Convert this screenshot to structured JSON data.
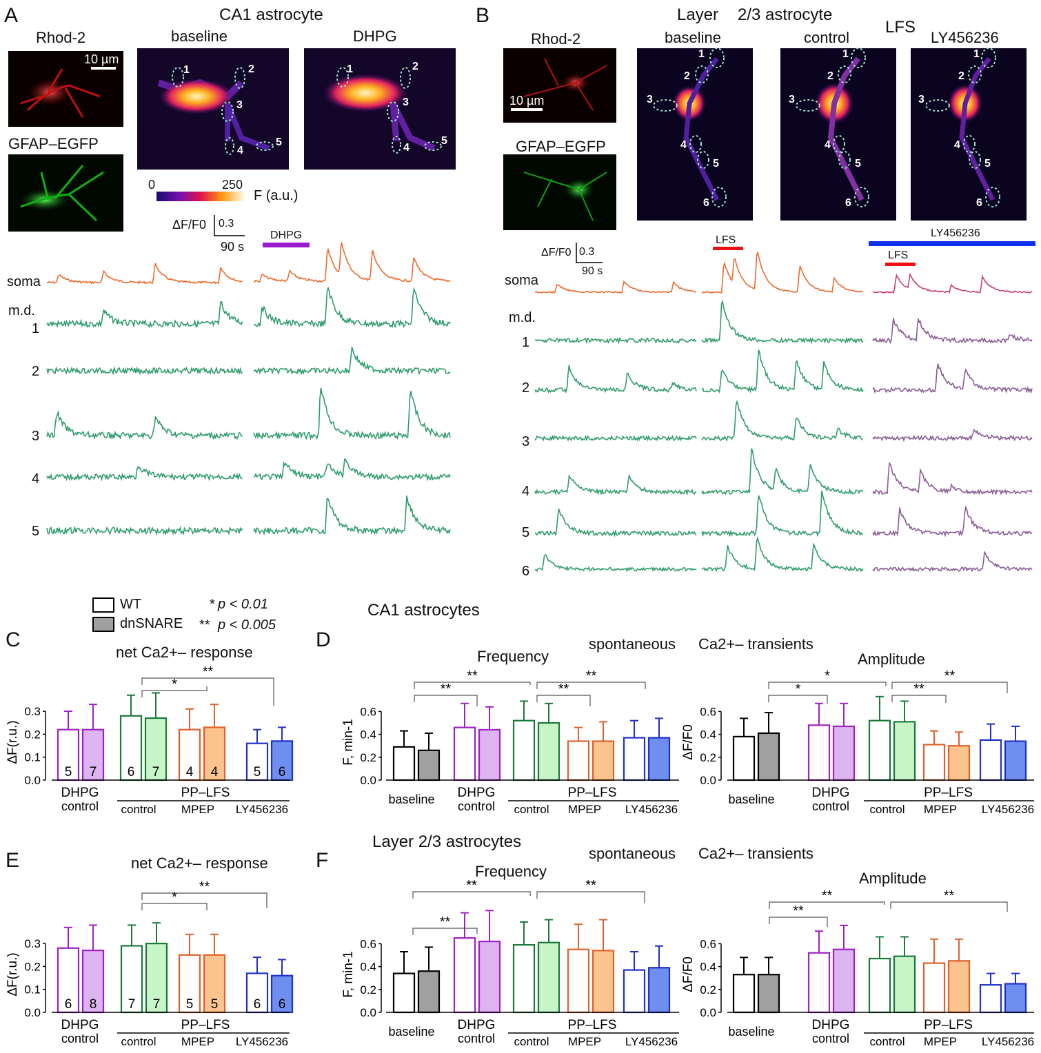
{
  "colors": {
    "red": "#e01010",
    "green": "#1ec81e",
    "orange": "#ee6a2e",
    "tracegreen": "#2e9c6a",
    "purple": "#a020c8",
    "purplefill": "#dcb4f0",
    "greenbar": "#1a7a3a",
    "greenfill": "#c8f5c8",
    "orangebar": "#e0602a",
    "orangefill": "#fbc48e",
    "bluebar": "#2030c8",
    "bluefill": "#6e8ef0",
    "gray": "#a0a0a0",
    "mauve": "#8a5a96",
    "pink": "#c83c78",
    "blueline": "#1030f0",
    "redline": "#ee1010"
  },
  "panelA": {
    "letter": "A",
    "title": "CA1 astrocyte",
    "rhod": "Rhod-2",
    "gfap": "GFAP–EGFP",
    "scale": "10 µm",
    "baseline": "baseline",
    "dhpg": "DHPG",
    "roi": [
      "1",
      "2",
      "3",
      "4",
      "5"
    ],
    "cb_min": "0",
    "cb_max": "250",
    "cb_unit": "F (a.u.)",
    "df_label": "ΔF/F0",
    "df_scale": "0.3",
    "time_scale": "90 s",
    "dhpg_bar": "DHPG",
    "trace_soma": "soma",
    "trace_md": "m.d.",
    "traces": [
      "1",
      "2",
      "3",
      "4",
      "5"
    ]
  },
  "panelB": {
    "letter": "B",
    "title_a": "Layer",
    "title_b": "2/3 astrocyte",
    "lfs": "LFS",
    "rhod": "Rhod-2",
    "gfap": "GFAP–EGFP",
    "scale": "10 µm",
    "baseline": "baseline",
    "control": "control",
    "ly": "LY456236",
    "roi": [
      "1",
      "2",
      "3",
      "4",
      "5",
      "6"
    ],
    "df_label": "ΔF/F0",
    "df_scale": "0.3",
    "time_scale": "90 s",
    "lfs_bar": "LFS",
    "ly_bar": "LY456236",
    "lfs_bar2": "LFS",
    "trace_soma": "soma",
    "trace_md": "m.d.",
    "traces": [
      "1",
      "2",
      "3",
      "4",
      "5",
      "6"
    ]
  },
  "legend": {
    "wt": "WT",
    "dn": "dnSNARE",
    "p1": "p < 0.01",
    "p2": "p < 0.005",
    "s1": "*",
    "s2": "**"
  },
  "headers": {
    "ca1": "CA1 astrocytes",
    "l23": "Layer 2/3 astrocytes",
    "spont": "spontaneous",
    "ca": "Ca2+– transients",
    "freq": "Frequency",
    "amp": "Amplitude",
    "net": "net Ca2+– response",
    "C": "C",
    "D": "D",
    "E": "E",
    "F": "F"
  },
  "chart_data": [
    {
      "id": "C",
      "type": "bar",
      "title": "net Ca2+– response",
      "ylabel": "ΔF(r.u.)",
      "ylim": [
        0,
        0.3
      ],
      "yticks": [
        "0.0",
        "0.1",
        "0.2",
        "0.3"
      ],
      "groups": [
        "DHPG control",
        "PP–LFS control",
        "PP–LFS MPEP",
        "PP–LFS LY456236"
      ],
      "series": [
        {
          "name": "WT",
          "values": [
            0.22,
            0.28,
            0.22,
            0.16
          ],
          "err": [
            0.08,
            0.09,
            0.09,
            0.06
          ],
          "n": [
            "5",
            "6",
            "4",
            "5"
          ]
        },
        {
          "name": "dnSNARE",
          "values": [
            0.22,
            0.27,
            0.23,
            0.17
          ],
          "err": [
            0.11,
            0.11,
            0.1,
            0.06
          ],
          "n": [
            "7",
            "7",
            "4",
            "6"
          ]
        }
      ],
      "sig": [
        "*",
        "**"
      ]
    },
    {
      "id": "D1",
      "type": "bar",
      "title": "Frequency",
      "ylabel": "F, min-1",
      "ylim": [
        0,
        0.6
      ],
      "yticks": [
        "0.0",
        "0.2",
        "0.4",
        "0.6"
      ],
      "groups": [
        "baseline",
        "DHPG control",
        "PP–LFS control",
        "PP–LFS MPEP",
        "PP–LFS LY456236"
      ],
      "series": [
        {
          "name": "WT",
          "values": [
            0.29,
            0.46,
            0.52,
            0.34,
            0.37
          ],
          "err": [
            0.14,
            0.21,
            0.17,
            0.12,
            0.15
          ]
        },
        {
          "name": "dnSNARE",
          "values": [
            0.26,
            0.44,
            0.5,
            0.34,
            0.37
          ],
          "err": [
            0.15,
            0.2,
            0.17,
            0.17,
            0.17
          ]
        }
      ],
      "sig": [
        "**",
        "**",
        "**",
        "**"
      ]
    },
    {
      "id": "D2",
      "type": "bar",
      "title": "Amplitude",
      "ylabel": "ΔF/F0",
      "ylim": [
        0,
        0.6
      ],
      "yticks": [
        "0.0",
        "0.2",
        "0.4",
        "0.6"
      ],
      "groups": [
        "baseline",
        "DHPG control",
        "PP–LFS control",
        "PP–LFS MPEP",
        "PP–LFS LY456236"
      ],
      "series": [
        {
          "name": "WT",
          "values": [
            0.38,
            0.48,
            0.52,
            0.31,
            0.35
          ],
          "err": [
            0.16,
            0.19,
            0.21,
            0.12,
            0.14
          ]
        },
        {
          "name": "dnSNARE",
          "values": [
            0.41,
            0.47,
            0.51,
            0.3,
            0.34
          ],
          "err": [
            0.18,
            0.2,
            0.18,
            0.12,
            0.13
          ]
        }
      ],
      "sig": [
        "*",
        "*",
        "**",
        "**"
      ]
    },
    {
      "id": "E",
      "type": "bar",
      "title": "net Ca2+– response",
      "ylabel": "ΔF(r.u.)",
      "ylim": [
        0,
        0.3
      ],
      "yticks": [
        "0.0",
        "0.1",
        "0.2",
        "0.3"
      ],
      "groups": [
        "DHPG control",
        "PP–LFS control",
        "PP–LFS MPEP",
        "PP–LFS LY456236"
      ],
      "series": [
        {
          "name": "WT",
          "values": [
            0.28,
            0.29,
            0.25,
            0.17
          ],
          "err": [
            0.09,
            0.09,
            0.09,
            0.07
          ],
          "n": [
            "6",
            "7",
            "5",
            "6"
          ]
        },
        {
          "name": "dnSNARE",
          "values": [
            0.27,
            0.3,
            0.25,
            0.16
          ],
          "err": [
            0.11,
            0.09,
            0.09,
            0.07
          ],
          "n": [
            "8",
            "7",
            "5",
            "6"
          ]
        }
      ],
      "sig": [
        "*",
        "**"
      ]
    },
    {
      "id": "F1",
      "type": "bar",
      "title": "Frequency",
      "ylabel": "F, min-1",
      "ylim": [
        0,
        0.6
      ],
      "yticks": [
        "0.0",
        "0.2",
        "0.4",
        "0.6"
      ],
      "groups": [
        "baseline",
        "DHPG control",
        "PP–LFS control",
        "PP–LFS MPEP",
        "PP–LFS LY456236"
      ],
      "series": [
        {
          "name": "WT",
          "values": [
            0.34,
            0.65,
            0.59,
            0.55,
            0.37
          ],
          "err": [
            0.19,
            0.22,
            0.2,
            0.22,
            0.16
          ]
        },
        {
          "name": "dnSNARE",
          "values": [
            0.36,
            0.62,
            0.61,
            0.54,
            0.39
          ],
          "err": [
            0.21,
            0.27,
            0.2,
            0.27,
            0.19
          ]
        }
      ],
      "sig": [
        "**",
        "**",
        "**"
      ]
    },
    {
      "id": "F2",
      "type": "bar",
      "title": "Amplitude",
      "ylabel": "ΔF/F0",
      "ylim": [
        0,
        0.6
      ],
      "yticks": [
        "0.0",
        "0.2",
        "0.4",
        "0.6"
      ],
      "groups": [
        "baseline",
        "DHPG control",
        "PP–LFS control",
        "PP–LFS MPEP",
        "PP–LFS LY456236"
      ],
      "series": [
        {
          "name": "WT",
          "values": [
            0.33,
            0.52,
            0.47,
            0.43,
            0.24
          ],
          "err": [
            0.15,
            0.19,
            0.19,
            0.21,
            0.1
          ]
        },
        {
          "name": "dnSNARE",
          "values": [
            0.33,
            0.55,
            0.49,
            0.45,
            0.25
          ],
          "err": [
            0.15,
            0.21,
            0.17,
            0.19,
            0.09
          ]
        }
      ],
      "sig": [
        "**",
        "**",
        "**"
      ]
    }
  ]
}
